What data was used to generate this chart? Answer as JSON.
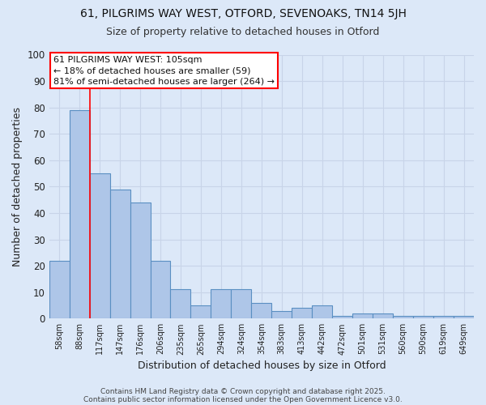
{
  "title1": "61, PILGRIMS WAY WEST, OTFORD, SEVENOAKS, TN14 5JH",
  "title2": "Size of property relative to detached houses in Otford",
  "xlabel": "Distribution of detached houses by size in Otford",
  "ylabel": "Number of detached properties",
  "categories": [
    "58sqm",
    "88sqm",
    "117sqm",
    "147sqm",
    "176sqm",
    "206sqm",
    "235sqm",
    "265sqm",
    "294sqm",
    "324sqm",
    "354sqm",
    "383sqm",
    "413sqm",
    "442sqm",
    "472sqm",
    "501sqm",
    "531sqm",
    "560sqm",
    "590sqm",
    "619sqm",
    "649sqm"
  ],
  "values": [
    22,
    79,
    55,
    49,
    44,
    22,
    11,
    5,
    11,
    11,
    6,
    3,
    4,
    5,
    1,
    2,
    2,
    1,
    1,
    1,
    1
  ],
  "bar_color": "#aec6e8",
  "bar_edge_color": "#5a8fc2",
  "redline_x": 1.5,
  "annotation_text_line1": "61 PILGRIMS WAY WEST: 105sqm",
  "annotation_text_line2": "← 18% of detached houses are smaller (59)",
  "annotation_text_line3": "81% of semi-detached houses are larger (264) →",
  "annotation_box_color": "white",
  "annotation_box_edge_color": "red",
  "redline_color": "red",
  "ylim": [
    0,
    100
  ],
  "yticks": [
    0,
    10,
    20,
    30,
    40,
    50,
    60,
    70,
    80,
    90,
    100
  ],
  "grid_color": "#c8d4e8",
  "background_color": "#dce8f8",
  "footer_line1": "Contains HM Land Registry data © Crown copyright and database right 2025.",
  "footer_line2": "Contains public sector information licensed under the Open Government Licence v3.0."
}
